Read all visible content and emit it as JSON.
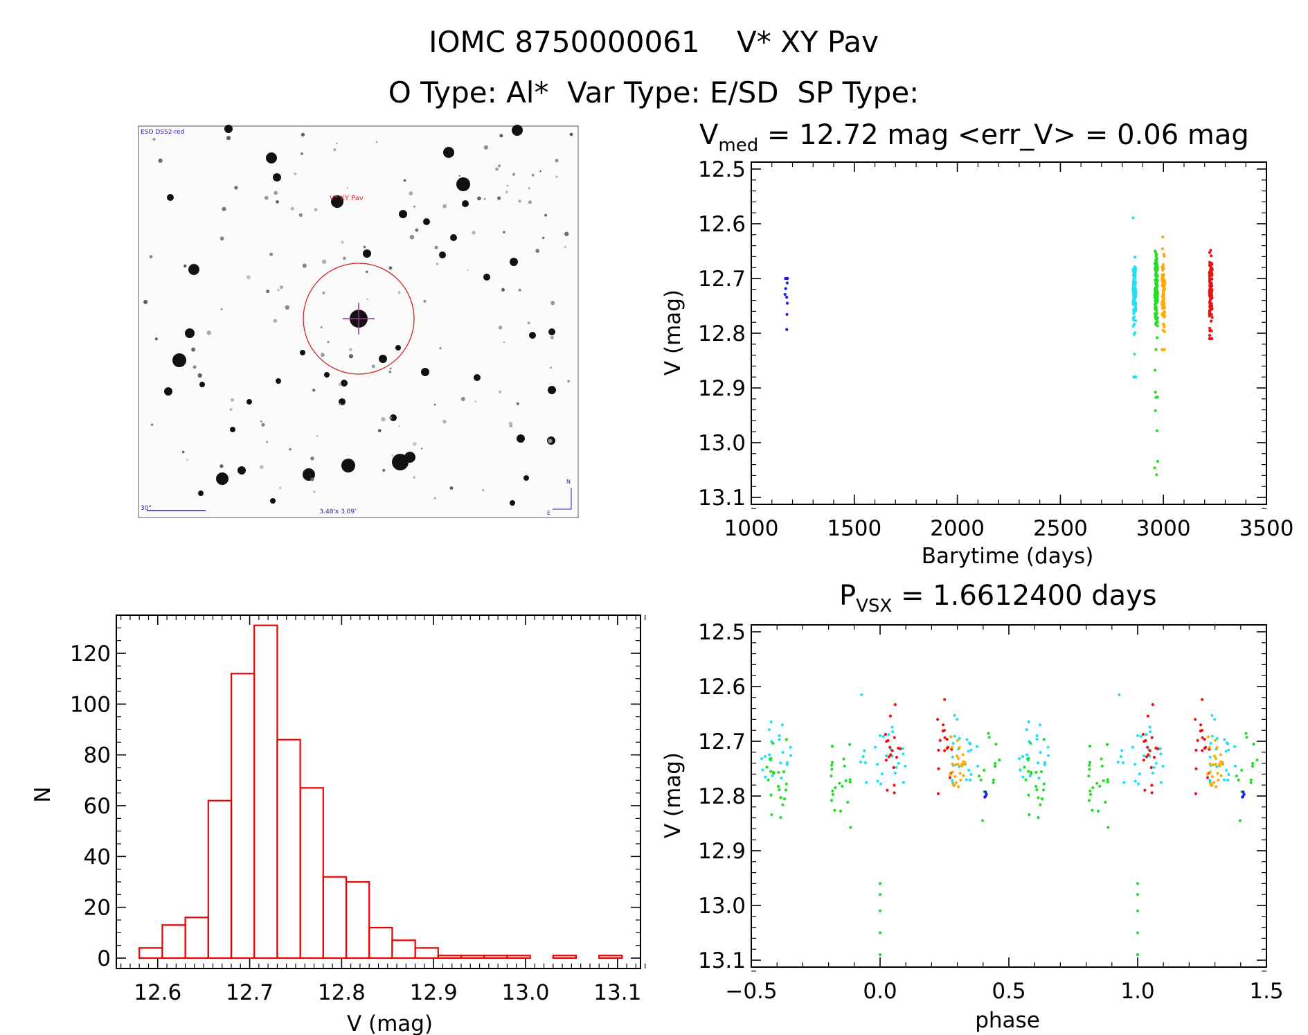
{
  "header": {
    "title": "IOMC 8750000061    V* XY Pav",
    "subtitle": "O Type: Al*  Var Type: E/SD  SP Type:"
  },
  "finder_chart": {
    "survey_label": "ESO DSS2-red",
    "target_label": "V* XY Pav",
    "scale_label": "30\"",
    "fov_label": "3.48'x 3.09'",
    "north_label": "N",
    "east_label": "E"
  },
  "colors": {
    "series_blue": "#1a1aee",
    "series_cyan": "#22e0f0",
    "series_green": "#22dd22",
    "series_orange": "#ffaa00",
    "series_red": "#ee1111",
    "histogram": "#ee0000",
    "finder_circle": "#cc2222"
  },
  "chart_data": [
    {
      "type": "scatter",
      "title_main": "V",
      "title_sub": "med",
      "title_rest": " = 12.72 mag <err_V> = 0.06 mag",
      "xlabel": "Barytime (days)",
      "ylabel": "V (mag)",
      "xlim": [
        1000,
        3500
      ],
      "ylim": [
        13.1,
        12.5
      ],
      "y_inverted": true,
      "xticks": [
        "1000",
        "1500",
        "2000",
        "2500",
        "3000",
        "3500"
      ],
      "yticks": [
        "12.5",
        "12.6",
        "12.7",
        "12.8",
        "12.9",
        "13.0",
        "13.1"
      ],
      "series": [
        {
          "color": "series_blue",
          "x_center": 1170,
          "points_approx": 12,
          "y_range": [
            12.7,
            12.85
          ]
        },
        {
          "color": "series_cyan",
          "x_center": 2860,
          "points_approx": 140,
          "y_range": [
            12.58,
            12.88
          ]
        },
        {
          "color": "series_green",
          "x_center": 2965,
          "points_approx": 130,
          "y_range": [
            12.65,
            13.09
          ]
        },
        {
          "color": "series_orange",
          "x_center": 3000,
          "points_approx": 90,
          "y_range": [
            12.6,
            12.83
          ]
        },
        {
          "color": "series_red",
          "x_center": 3230,
          "points_approx": 120,
          "y_range": [
            12.6,
            12.81
          ]
        }
      ]
    },
    {
      "type": "scatter",
      "title_main": "P",
      "title_sub": "VSX",
      "title_rest": " = 1.6612400 days",
      "xlabel": "phase",
      "ylabel": "V (mag)",
      "xlim": [
        -0.5,
        1.5
      ],
      "ylim": [
        13.1,
        12.5
      ],
      "y_inverted": true,
      "xticks": [
        "−0.5",
        "0.0",
        "0.5",
        "1.0",
        "1.5"
      ],
      "yticks": [
        "12.5",
        "12.6",
        "12.7",
        "12.8",
        "12.9",
        "13.0",
        "13.1"
      ],
      "period_days": 1.66124,
      "primary_minimum_phase": 0.0,
      "primary_minimum_mag": 13.09,
      "secondary_minimum_phase": 0.5,
      "secondary_minimum_mag": 12.78,
      "out_of_eclipse_mag": 12.72
    },
    {
      "type": "bar",
      "subtype": "histogram",
      "xlabel": "V (mag)",
      "ylabel": "N",
      "xlim": [
        12.555,
        13.125
      ],
      "ylim": [
        0,
        135
      ],
      "xticks": [
        "12.6",
        "12.7",
        "12.8",
        "12.9",
        "13.0",
        "13.1"
      ],
      "yticks": [
        "0",
        "20",
        "40",
        "60",
        "80",
        "100",
        "120"
      ],
      "bin_width": 0.025,
      "bin_left_edges": [
        12.58,
        12.605,
        12.63,
        12.655,
        12.68,
        12.705,
        12.73,
        12.755,
        12.78,
        12.805,
        12.83,
        12.855,
        12.88,
        12.905,
        12.93,
        12.955,
        12.98,
        13.005,
        13.03,
        13.055,
        13.08
      ],
      "counts": [
        4,
        13,
        16,
        62,
        112,
        131,
        86,
        67,
        32,
        30,
        12,
        7,
        4,
        1,
        1,
        1,
        1,
        0,
        1,
        0,
        1
      ]
    }
  ]
}
